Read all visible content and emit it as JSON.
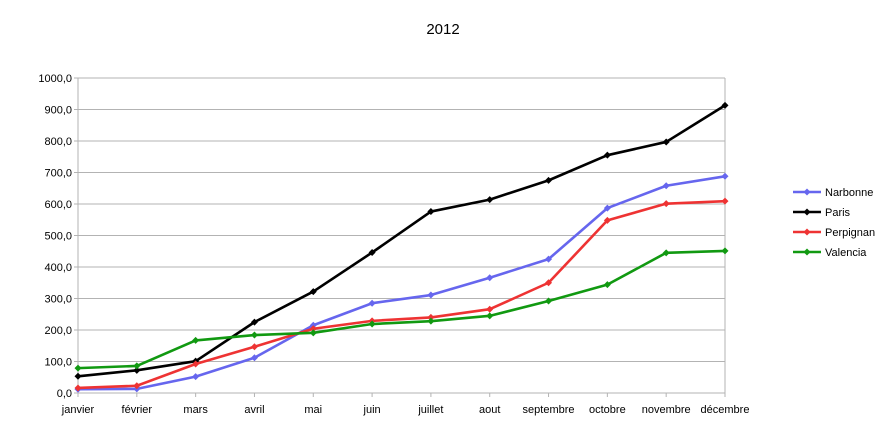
{
  "chart_data": {
    "type": "line",
    "title": "2012",
    "xlabel": "",
    "ylabel": "",
    "ylim": [
      0,
      1000
    ],
    "y_ticks": [
      "0,0",
      "100,0",
      "200,0",
      "300,0",
      "400,0",
      "500,0",
      "600,0",
      "700,0",
      "800,0",
      "900,0",
      "1000,0"
    ],
    "grid": "horizontal",
    "legend_position": "right",
    "categories": [
      "janvier",
      "février",
      "mars",
      "avril",
      "mai",
      "juin",
      "juillet",
      "aout",
      "septembre",
      "octobre",
      "novembre",
      "décembre"
    ],
    "series": [
      {
        "name": "Narbonne",
        "color": "#6666ee",
        "values": [
          12,
          13,
          52,
          112,
          215,
          285,
          311,
          366,
          425,
          587,
          658,
          688
        ]
      },
      {
        "name": "Paris",
        "color": "#000000",
        "values": [
          53,
          72,
          101,
          225,
          322,
          446,
          576,
          614,
          675,
          755,
          797,
          913
        ]
      },
      {
        "name": "Perpignan",
        "color": "#ee3333",
        "values": [
          16,
          23,
          92,
          147,
          204,
          229,
          240,
          266,
          350,
          548,
          601,
          609
        ]
      },
      {
        "name": "Valencia",
        "color": "#119911",
        "values": [
          79,
          86,
          167,
          184,
          191,
          219,
          228,
          245,
          292,
          344,
          445,
          451
        ]
      }
    ]
  }
}
